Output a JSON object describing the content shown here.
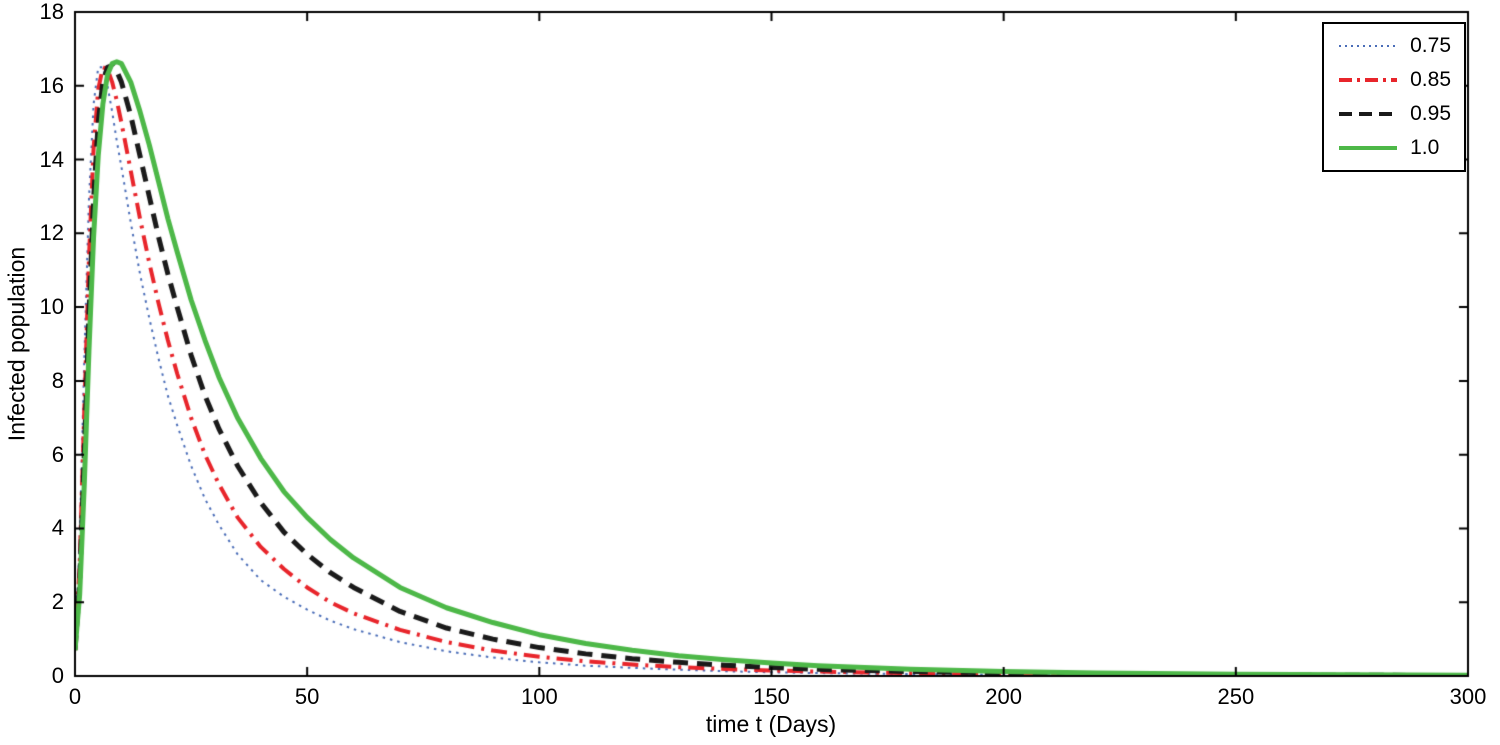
{
  "figure": {
    "background": "#ffffff",
    "axis_color": "#000000",
    "text_color": "#000000"
  },
  "chart_data": {
    "type": "line",
    "title": "",
    "xlabel": "time t (Days)",
    "ylabel": "Infected population",
    "xlim": [
      0,
      300
    ],
    "ylim": [
      0,
      18
    ],
    "xticks": [
      0,
      50,
      100,
      150,
      200,
      250,
      300
    ],
    "yticks": [
      0,
      2,
      4,
      6,
      8,
      10,
      12,
      14,
      16,
      18
    ],
    "grid": false,
    "legend_position": "top-right",
    "x": [
      0,
      1,
      2,
      3,
      4,
      5,
      6,
      7,
      8,
      9,
      10,
      12,
      14,
      16,
      18,
      20,
      22,
      25,
      28,
      31,
      35,
      40,
      45,
      50,
      55,
      60,
      70,
      80,
      90,
      100,
      110,
      120,
      130,
      140,
      150,
      160,
      180,
      200,
      220,
      250,
      300
    ],
    "series": [
      {
        "name": "0.75",
        "color": "#4a6db8",
        "style": "dotted",
        "width": 2,
        "values": [
          0.7,
          3.6,
          8.6,
          12.9,
          15.5,
          16.5,
          16.5,
          16.0,
          15.3,
          14.5,
          13.8,
          12.3,
          10.9,
          9.7,
          8.6,
          7.6,
          6.8,
          5.7,
          4.8,
          4.1,
          3.3,
          2.6,
          2.15,
          1.8,
          1.5,
          1.27,
          0.92,
          0.67,
          0.5,
          0.37,
          0.28,
          0.22,
          0.17,
          0.13,
          0.1,
          0.08,
          0.05,
          0.033,
          0.021,
          0.011,
          0.004
        ]
      },
      {
        "name": "0.85",
        "color": "#e8252b",
        "style": "dashdot",
        "width": 4,
        "values": [
          0.7,
          3.0,
          7.2,
          11.3,
          14.3,
          15.9,
          16.5,
          16.45,
          16.1,
          15.6,
          15.0,
          13.7,
          12.4,
          11.2,
          10.1,
          9.1,
          8.2,
          7.0,
          6.0,
          5.2,
          4.3,
          3.5,
          2.9,
          2.4,
          2.0,
          1.7,
          1.25,
          0.92,
          0.69,
          0.52,
          0.4,
          0.31,
          0.24,
          0.19,
          0.15,
          0.12,
          0.075,
          0.05,
          0.033,
          0.018,
          0.007
        ]
      },
      {
        "name": "0.95",
        "color": "#1a1a1a",
        "style": "dashed",
        "width": 5,
        "values": [
          0.7,
          2.5,
          6.0,
          9.8,
          12.9,
          15.0,
          16.1,
          16.5,
          16.55,
          16.4,
          16.1,
          15.2,
          14.1,
          13.0,
          11.9,
          10.9,
          10.0,
          8.7,
          7.6,
          6.7,
          5.7,
          4.7,
          3.9,
          3.3,
          2.8,
          2.4,
          1.75,
          1.3,
          1.0,
          0.77,
          0.6,
          0.47,
          0.37,
          0.29,
          0.23,
          0.18,
          0.12,
          0.08,
          0.05,
          0.03,
          0.012
        ]
      },
      {
        "name": "1.0",
        "color": "#4db848",
        "style": "solid",
        "width": 5,
        "values": [
          0.7,
          2.2,
          5.2,
          8.8,
          11.9,
          14.1,
          15.5,
          16.3,
          16.6,
          16.65,
          16.6,
          16.1,
          15.3,
          14.4,
          13.4,
          12.4,
          11.5,
          10.2,
          9.1,
          8.1,
          7.0,
          5.9,
          5.0,
          4.3,
          3.7,
          3.2,
          2.4,
          1.85,
          1.45,
          1.12,
          0.88,
          0.7,
          0.55,
          0.44,
          0.35,
          0.28,
          0.18,
          0.12,
          0.08,
          0.045,
          0.02
        ]
      }
    ]
  }
}
